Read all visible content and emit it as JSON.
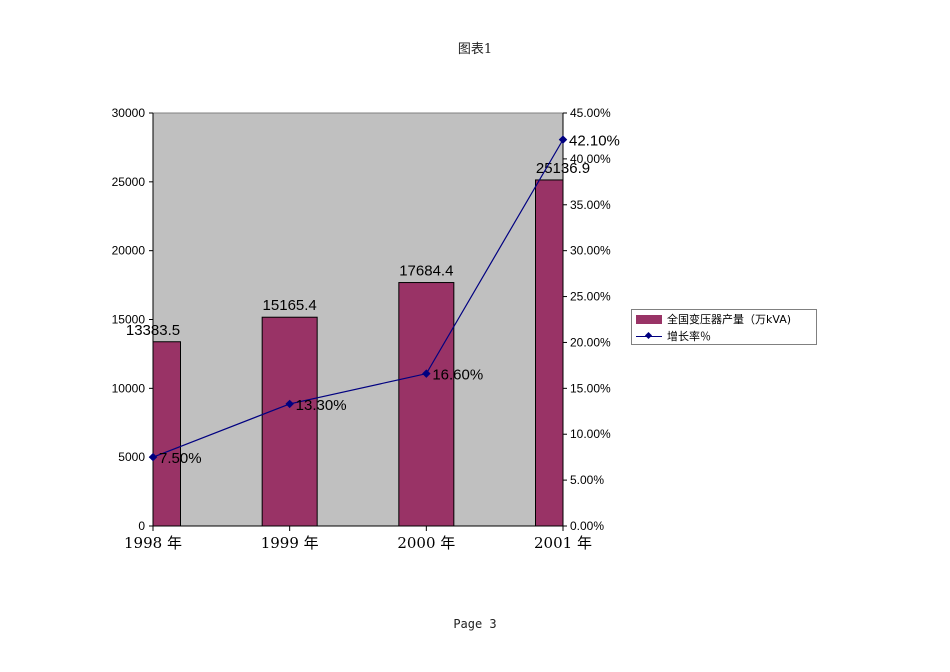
{
  "page": {
    "title": "图表1",
    "footer": "Page 3"
  },
  "chart_data": {
    "type": "bar",
    "categories": [
      "1998 年",
      "1999 年",
      "2000 年",
      "2001 年"
    ],
    "series": [
      {
        "name": "全国变压器产量（万kVA)",
        "type": "bar",
        "axis": "left",
        "values": [
          13383.5,
          15165.4,
          17684.4,
          25136.9
        ],
        "labels": [
          "13383.5",
          "15165.4",
          "17684.4",
          "25136.9"
        ],
        "color": "#993366"
      },
      {
        "name": "增长率％",
        "type": "line",
        "axis": "right",
        "values": [
          7.5,
          13.3,
          16.6,
          42.1
        ],
        "labels": [
          "7.50%",
          "13.30%",
          "16.60%",
          "42.10%"
        ],
        "color": "#000080"
      }
    ],
    "y_left": {
      "min": 0,
      "max": 30000,
      "ticks": [
        "0",
        "5000",
        "10000",
        "15000",
        "20000",
        "25000",
        "30000"
      ]
    },
    "y_right": {
      "min": 0,
      "max": 45,
      "ticks": [
        "0.00%",
        "5.00%",
        "10.00%",
        "15.00%",
        "20.00%",
        "25.00%",
        "30.00%",
        "35.00%",
        "40.00%",
        "45.00%"
      ]
    },
    "plot_background": "#c0c0c0",
    "grid": false,
    "legend_position": "right"
  }
}
